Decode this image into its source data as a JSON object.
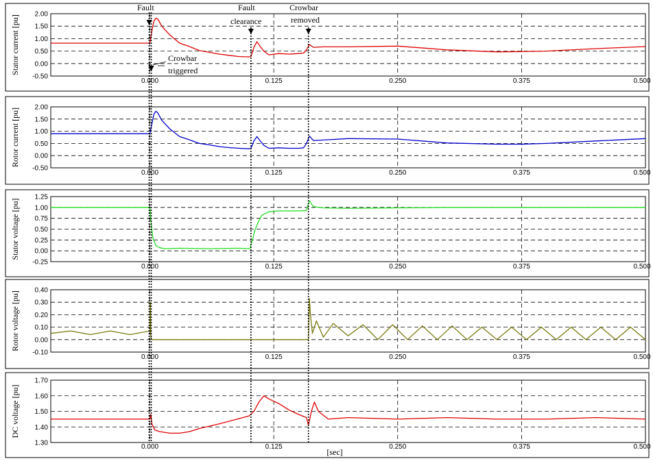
{
  "chart_data": [
    {
      "type": "line",
      "ylabel": "Stator current [pu]",
      "ylim": [
        -0.5,
        2.0
      ],
      "yticks": [
        "2.00",
        "1.50",
        "1.00",
        "0.50",
        "0.00",
        "-0.50"
      ],
      "xlim": [
        -0.1,
        0.5
      ],
      "xticks": [
        "0.000",
        "0.125",
        "0.250",
        "0.375",
        "0.500"
      ],
      "grid": true,
      "series": [
        {
          "color": "#e00000",
          "x": [
            -0.1,
            -0.05,
            0,
            0.002,
            0.004,
            0.006,
            0.008,
            0.012,
            0.02,
            0.03,
            0.04,
            0.05,
            0.06,
            0.07,
            0.08,
            0.09,
            0.1,
            0.102,
            0.105,
            0.108,
            0.111,
            0.115,
            0.12,
            0.13,
            0.14,
            0.15,
            0.155,
            0.158,
            0.161,
            0.165,
            0.175,
            0.2,
            0.25,
            0.3,
            0.35,
            0.375,
            0.4,
            0.45,
            0.5
          ],
          "y": [
            0.82,
            0.82,
            0.82,
            1.3,
            1.7,
            1.82,
            1.78,
            1.5,
            1.15,
            0.82,
            0.68,
            0.52,
            0.45,
            0.38,
            0.33,
            0.28,
            0.27,
            0.28,
            0.65,
            0.88,
            0.7,
            0.5,
            0.35,
            0.4,
            0.38,
            0.4,
            0.42,
            0.55,
            0.76,
            0.65,
            0.67,
            0.67,
            0.7,
            0.55,
            0.47,
            0.48,
            0.5,
            0.6,
            0.68
          ]
        }
      ]
    },
    {
      "type": "line",
      "ylabel": "Rotor current [pu]",
      "ylim": [
        -0.5,
        2.0
      ],
      "yticks": [
        "2.00",
        "1.50",
        "1.00",
        "0.50",
        "0.00",
        "-0.50"
      ],
      "xlim": [
        -0.1,
        0.5
      ],
      "xticks": [
        "0.000",
        "0.125",
        "0.250",
        "0.375",
        "0.500"
      ],
      "grid": true,
      "series": [
        {
          "color": "#0000cc",
          "x": [
            -0.1,
            -0.05,
            0,
            0.002,
            0.004,
            0.006,
            0.008,
            0.012,
            0.02,
            0.03,
            0.04,
            0.05,
            0.06,
            0.07,
            0.08,
            0.09,
            0.1,
            0.102,
            0.105,
            0.108,
            0.111,
            0.115,
            0.12,
            0.13,
            0.14,
            0.15,
            0.155,
            0.158,
            0.161,
            0.165,
            0.175,
            0.2,
            0.25,
            0.3,
            0.35,
            0.375,
            0.4,
            0.45,
            0.5
          ],
          "y": [
            0.9,
            0.9,
            0.9,
            1.3,
            1.7,
            1.82,
            1.75,
            1.45,
            1.1,
            0.78,
            0.65,
            0.5,
            0.44,
            0.37,
            0.33,
            0.3,
            0.28,
            0.3,
            0.6,
            0.78,
            0.62,
            0.42,
            0.3,
            0.32,
            0.3,
            0.3,
            0.32,
            0.5,
            0.8,
            0.62,
            0.64,
            0.7,
            0.68,
            0.52,
            0.47,
            0.47,
            0.5,
            0.6,
            0.7
          ]
        }
      ]
    },
    {
      "type": "line",
      "ylabel": "Stator voltage [pu]",
      "ylim": [
        -0.25,
        1.25
      ],
      "yticks": [
        "1.25",
        "1.00",
        "0.75",
        "0.50",
        "0.25",
        "0.00",
        "-0.25"
      ],
      "xlim": [
        -0.1,
        0.5
      ],
      "xticks": [
        "0.000",
        "0.125",
        "0.250",
        "0.375",
        "0.500"
      ],
      "grid": true,
      "series": [
        {
          "color": "#22dd22",
          "x": [
            -0.1,
            -0.05,
            0,
            0.001,
            0.003,
            0.006,
            0.01,
            0.015,
            0.03,
            0.06,
            0.09,
            0.1,
            0.101,
            0.104,
            0.106,
            0.11,
            0.113,
            0.12,
            0.13,
            0.15,
            0.158,
            0.16,
            0.161,
            0.165,
            0.175,
            0.2,
            0.3,
            0.4,
            0.5
          ],
          "y": [
            1.0,
            1.0,
            1.0,
            0.7,
            0.3,
            0.12,
            0.07,
            0.05,
            0.06,
            0.05,
            0.06,
            0.05,
            0.05,
            0.3,
            0.48,
            0.7,
            0.82,
            0.9,
            0.92,
            0.92,
            0.93,
            1.1,
            1.15,
            1.02,
            0.99,
            0.98,
            1.0,
            1.0,
            1.0
          ]
        }
      ]
    },
    {
      "type": "line",
      "ylabel": "Rotor voltage [pu]",
      "ylim": [
        -0.1,
        0.4
      ],
      "yticks": [
        "0.40",
        "0.30",
        "0.20",
        "0.10",
        "0.00",
        "-0.10"
      ],
      "xlim": [
        -0.1,
        0.5
      ],
      "xticks": [
        "0.000",
        "0.125",
        "0.250",
        "0.375",
        "0.500"
      ],
      "grid": true,
      "series": [
        {
          "color": "#7a7a10",
          "x": [
            -0.1,
            -0.08,
            -0.06,
            -0.04,
            -0.02,
            0,
            0.0005,
            0.001,
            0.002,
            0.16,
            0.161,
            0.162,
            0.164,
            0.168,
            0.175,
            0.185,
            0.2,
            0.215,
            0.23,
            0.245,
            0.26,
            0.275,
            0.29,
            0.305,
            0.32,
            0.335,
            0.35,
            0.365,
            0.38,
            0.395,
            0.41,
            0.425,
            0.44,
            0.455,
            0.47,
            0.485,
            0.5
          ],
          "y": [
            0.05,
            0.07,
            0.04,
            0.07,
            0.04,
            0.07,
            0.3,
            0.02,
            0.0,
            0.0,
            0.33,
            0.2,
            0.05,
            0.15,
            0.02,
            0.13,
            0.03,
            0.12,
            0.0,
            0.12,
            0.0,
            0.11,
            0.0,
            0.11,
            0.0,
            0.1,
            0.0,
            0.1,
            0.0,
            0.1,
            0.0,
            0.1,
            0.0,
            0.1,
            0.0,
            0.1,
            0.0
          ]
        }
      ]
    },
    {
      "type": "line",
      "ylabel": "DC voltage [pu]",
      "ylim": [
        1.3,
        1.7
      ],
      "yticks": [
        "1.70",
        "1.60",
        "1.50",
        "1.40",
        "1.30"
      ],
      "xlim": [
        -0.1,
        0.5
      ],
      "xticks": [
        "0.000",
        "0.125",
        "0.250",
        "0.375",
        "0.500"
      ],
      "xlabel": "[sec]",
      "grid": true,
      "series": [
        {
          "color": "#e00000",
          "x": [
            -0.1,
            -0.05,
            0,
            0.001,
            0.002,
            0.005,
            0.01,
            0.02,
            0.03,
            0.04,
            0.05,
            0.07,
            0.1,
            0.105,
            0.11,
            0.115,
            0.12,
            0.13,
            0.14,
            0.15,
            0.158,
            0.16,
            0.163,
            0.166,
            0.17,
            0.18,
            0.2,
            0.25,
            0.3,
            0.35,
            0.4,
            0.45,
            0.5
          ],
          "y": [
            1.45,
            1.45,
            1.45,
            1.48,
            1.42,
            1.38,
            1.37,
            1.36,
            1.36,
            1.37,
            1.39,
            1.42,
            1.47,
            1.5,
            1.56,
            1.6,
            1.58,
            1.55,
            1.51,
            1.48,
            1.46,
            1.41,
            1.5,
            1.56,
            1.5,
            1.45,
            1.46,
            1.45,
            1.46,
            1.45,
            1.45,
            1.46,
            1.45
          ]
        }
      ]
    }
  ],
  "annotations": {
    "fault": "Fault",
    "fault_clearance_1": "Fault",
    "fault_clearance_2": "clearance",
    "crowbar_removed_1": "Crowbar",
    "crowbar_removed_2": "removed",
    "crowbar_triggered_1": "Crowbar",
    "crowbar_triggered_2": "triggered"
  },
  "markers": {
    "fault_time": 0.0,
    "clearance_time": 0.102,
    "removed_time": 0.16
  }
}
